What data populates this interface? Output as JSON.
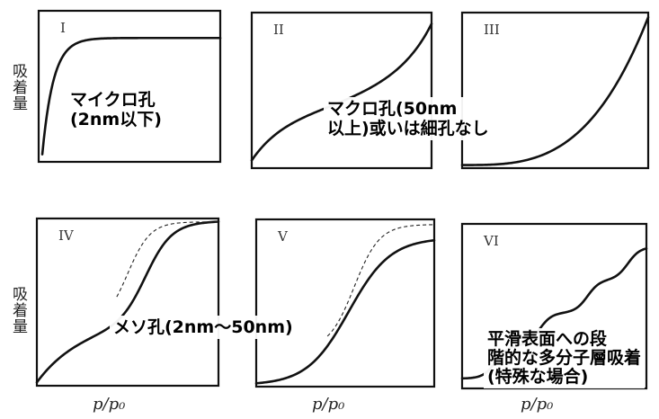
{
  "y_axis_label": "吸着量",
  "x_axis_label": "p/p₀",
  "panels": [
    {
      "roman": "I",
      "curve": "type-I"
    },
    {
      "roman": "II",
      "curve": "type-II"
    },
    {
      "roman": "III",
      "curve": "type-III"
    },
    {
      "roman": "IV",
      "curve": "type-IV"
    },
    {
      "roman": "V",
      "curve": "type-V"
    },
    {
      "roman": "VI",
      "curve": "type-VI"
    }
  ],
  "annotations": {
    "micropore": "マイクロ孔\n(2nm以下)",
    "macropore": "マクロ孔(50nm\n以上)或いは細孔なし",
    "mesopore": "メソ孔(2nm〜50nm)",
    "stepwise": "平滑表面への段\n階的な多分子層吸着\n(特殊な場合)"
  }
}
